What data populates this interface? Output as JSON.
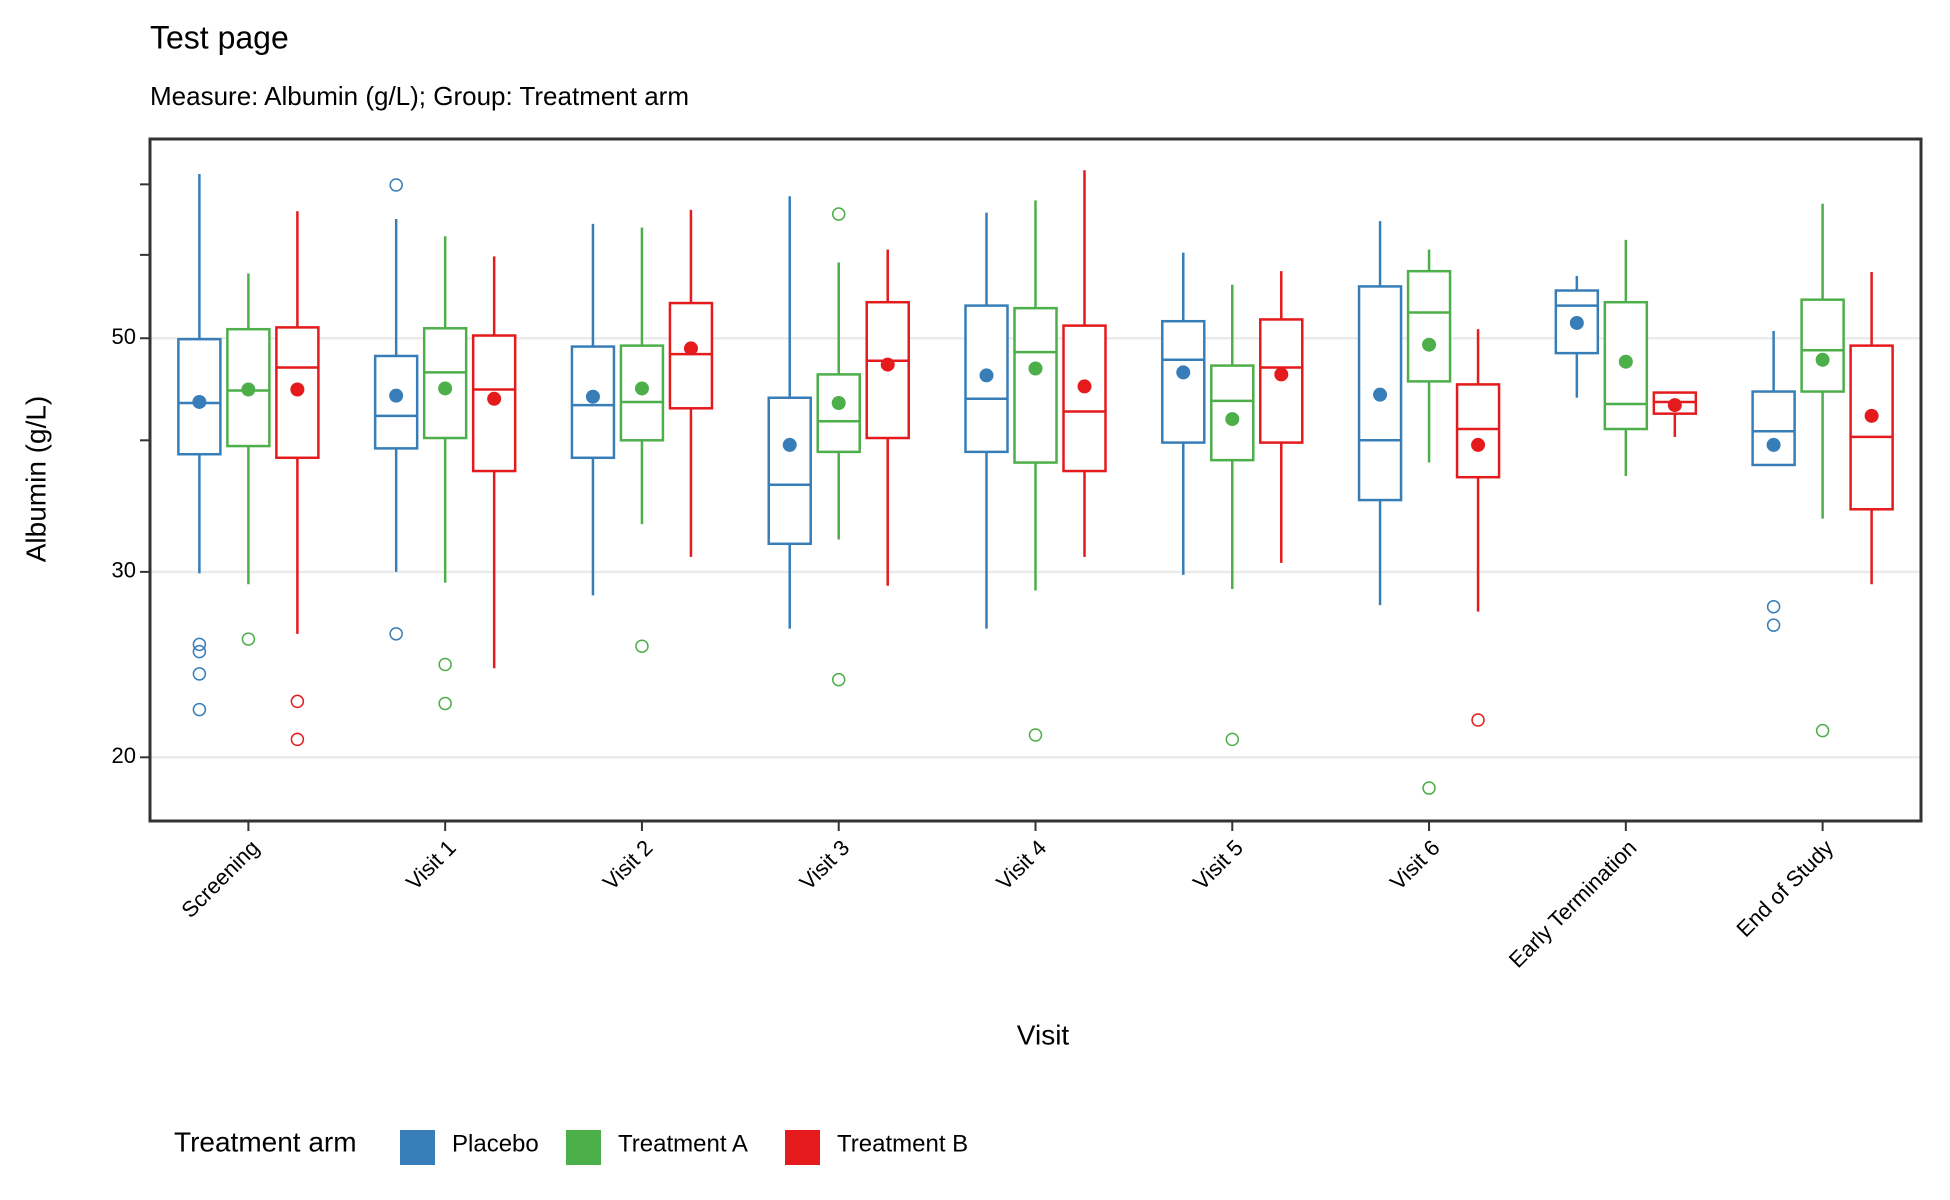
{
  "chart_data": {
    "type": "boxplot",
    "title": "Test page",
    "subtitle": "Measure: Albumin (g/L); Group: Treatment arm",
    "x_label": "Visit",
    "y_label": "Albumin (g/L)",
    "y_scale": "log",
    "grid": true,
    "legend_title": "Treatment arm",
    "legend_position": "bottom",
    "ylim": [
      17.4,
      77.3
    ],
    "yticks": [
      20,
      30,
      50
    ],
    "y_minor_ticks": [
      40,
      60,
      70
    ],
    "categories": [
      "Screening",
      "Visit 1",
      "Visit 2",
      "Visit 3",
      "Visit 4",
      "Visit 5",
      "Visit 6",
      "Early Termination",
      "End of Study"
    ],
    "series": [
      {
        "name": "Placebo",
        "color": "#377eb8",
        "boxes": [
          {
            "low": 29.9,
            "q1": 38.8,
            "median": 43.4,
            "q3": 49.9,
            "high": 71.6,
            "mean": 43.5,
            "outliers": [
              25.6,
              25.2,
              24.0,
              22.2
            ]
          },
          {
            "low": 30.0,
            "q1": 39.3,
            "median": 42.2,
            "q3": 48.1,
            "high": 64.9,
            "mean": 44.1,
            "outliers": [
              69.9,
              26.2
            ]
          },
          {
            "low": 28.5,
            "q1": 38.5,
            "median": 43.2,
            "q3": 49.1,
            "high": 64.2,
            "mean": 44.0,
            "outliers": []
          },
          {
            "low": 26.5,
            "q1": 31.9,
            "median": 36.3,
            "q3": 43.9,
            "high": 68.2,
            "mean": 39.6,
            "outliers": []
          },
          {
            "low": 26.5,
            "q1": 39.0,
            "median": 43.8,
            "q3": 53.7,
            "high": 65.8,
            "mean": 46.1,
            "outliers": []
          },
          {
            "low": 29.8,
            "q1": 39.8,
            "median": 47.7,
            "q3": 51.9,
            "high": 60.3,
            "mean": 46.4,
            "outliers": []
          },
          {
            "low": 27.9,
            "q1": 35.1,
            "median": 40.0,
            "q3": 56.0,
            "high": 64.6,
            "mean": 44.2,
            "outliers": []
          },
          {
            "low": 43.9,
            "q1": 48.4,
            "median": 53.7,
            "q3": 55.5,
            "high": 57.3,
            "mean": 51.7,
            "outliers": []
          },
          {
            "low": 37.9,
            "q1": 37.9,
            "median": 40.8,
            "q3": 44.5,
            "high": 50.8,
            "mean": 39.6,
            "outliers": [
              27.8,
              26.7
            ]
          }
        ]
      },
      {
        "name": "Treatment A",
        "color": "#4daf4a",
        "boxes": [
          {
            "low": 29.2,
            "q1": 39.5,
            "median": 44.6,
            "q3": 51.0,
            "high": 57.6,
            "mean": 44.7,
            "outliers": [
              25.9
            ]
          },
          {
            "low": 29.3,
            "q1": 40.2,
            "median": 46.4,
            "q3": 51.1,
            "high": 62.5,
            "mean": 44.8,
            "outliers": [
              24.5,
              22.5
            ]
          },
          {
            "low": 33.3,
            "q1": 40.0,
            "median": 43.5,
            "q3": 49.2,
            "high": 63.7,
            "mean": 44.8,
            "outliers": [
              25.5
            ]
          },
          {
            "low": 32.2,
            "q1": 39.0,
            "median": 41.7,
            "q3": 46.2,
            "high": 59.0,
            "mean": 43.4,
            "outliers": [
              65.6,
              23.7
            ]
          },
          {
            "low": 28.8,
            "q1": 38.1,
            "median": 48.5,
            "q3": 53.4,
            "high": 67.6,
            "mean": 46.8,
            "outliers": [
              21.0
            ]
          },
          {
            "low": 28.9,
            "q1": 38.3,
            "median": 43.6,
            "q3": 47.1,
            "high": 56.2,
            "mean": 41.9,
            "outliers": [
              20.8
            ]
          },
          {
            "low": 38.1,
            "q1": 45.5,
            "median": 52.9,
            "q3": 57.9,
            "high": 60.7,
            "mean": 49.3,
            "outliers": [
              18.7
            ]
          },
          {
            "low": 37.0,
            "q1": 41.0,
            "median": 43.3,
            "q3": 54.1,
            "high": 62.0,
            "mean": 47.5,
            "outliers": []
          },
          {
            "low": 33.7,
            "q1": 44.5,
            "median": 48.7,
            "q3": 54.4,
            "high": 67.1,
            "mean": 47.7,
            "outliers": [
              21.2
            ]
          }
        ]
      },
      {
        "name": "Treatment B",
        "color": "#e41a1c",
        "boxes": [
          {
            "low": 26.2,
            "q1": 38.5,
            "median": 46.9,
            "q3": 51.2,
            "high": 66.0,
            "mean": 44.7,
            "outliers": [
              22.6,
              20.8
            ]
          },
          {
            "low": 24.3,
            "q1": 37.4,
            "median": 44.7,
            "q3": 50.3,
            "high": 59.8,
            "mean": 43.8,
            "outliers": []
          },
          {
            "low": 31.0,
            "q1": 42.9,
            "median": 48.3,
            "q3": 54.0,
            "high": 66.2,
            "mean": 48.9,
            "outliers": []
          },
          {
            "low": 29.1,
            "q1": 40.2,
            "median": 47.6,
            "q3": 54.1,
            "high": 60.7,
            "mean": 47.2,
            "outliers": []
          },
          {
            "low": 31.0,
            "q1": 37.4,
            "median": 42.6,
            "q3": 51.4,
            "high": 72.2,
            "mean": 45.0,
            "outliers": []
          },
          {
            "low": 30.6,
            "q1": 39.8,
            "median": 46.9,
            "q3": 52.1,
            "high": 57.9,
            "mean": 46.2,
            "outliers": []
          },
          {
            "low": 27.5,
            "q1": 36.9,
            "median": 41.0,
            "q3": 45.2,
            "high": 51.0,
            "mean": 39.6,
            "outliers": [
              21.7
            ]
          },
          {
            "low": 40.3,
            "q1": 42.4,
            "median": 43.5,
            "q3": 44.4,
            "high": 44.4,
            "mean": 43.2,
            "outliers": []
          },
          {
            "low": 29.2,
            "q1": 34.4,
            "median": 40.3,
            "q3": 49.2,
            "high": 57.8,
            "mean": 42.2,
            "outliers": []
          }
        ]
      }
    ]
  }
}
